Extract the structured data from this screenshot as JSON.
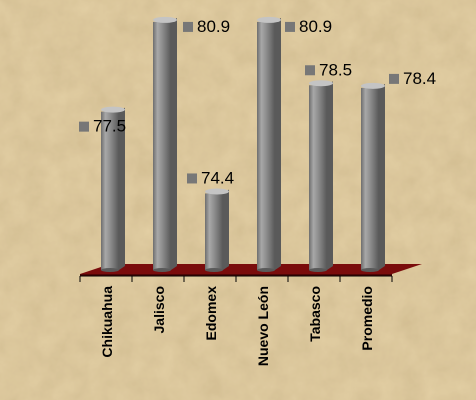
{
  "chart_data": {
    "type": "bar",
    "style": "3d-cylinder",
    "categories": [
      "Chikuahua",
      "Jalisco",
      "Edomex",
      "Nuevo León",
      "Tabasco",
      "Promedio"
    ],
    "values": [
      77.5,
      80.9,
      74.4,
      80.9,
      78.5,
      78.4
    ],
    "data_labels": [
      "77.5",
      "80.9",
      "74.4",
      "80.9",
      "78.5",
      "78.4"
    ],
    "ylim": [
      71.5,
      81.2
    ],
    "grid": false,
    "legend": "none",
    "colors": {
      "bar": "#8c8c8c",
      "bar_shadow": "#5a5a5a",
      "bar_highlight": "#c4c4c4",
      "floor": "#7a0c0c",
      "label_marker": "#777777",
      "background": "#e6d3aa"
    }
  }
}
